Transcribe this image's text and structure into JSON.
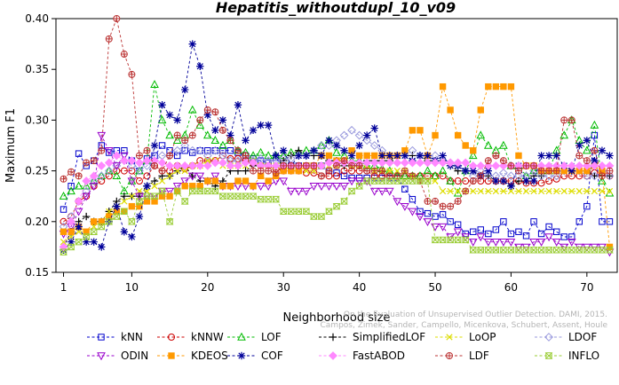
{
  "chart_data": {
    "type": "line",
    "title": "Hepatitis_withoutdupl_10_v09",
    "xlabel": "Neighborhood size",
    "ylabel": "Maximum F1",
    "xlim": [
      0,
      74
    ],
    "ylim": [
      0.15,
      0.4
    ],
    "x_ticks": [
      1,
      10,
      20,
      30,
      40,
      50,
      60,
      70
    ],
    "y_ticks": [
      "0.15",
      "0.20",
      "0.25",
      "0.30",
      "0.35",
      "0.40"
    ],
    "grid": false,
    "legend_position": "bottom",
    "credit": [
      "Campos, Zimek, Sander, Campello, Micenkova, Schubert, Assent, Houle",
      "On the Evaluation of Unsupervised Outlier Detection. DAMI, 2015."
    ],
    "x": [
      1,
      2,
      3,
      4,
      5,
      6,
      7,
      8,
      9,
      10,
      11,
      12,
      13,
      14,
      15,
      16,
      17,
      18,
      19,
      20,
      21,
      22,
      23,
      24,
      25,
      26,
      27,
      28,
      29,
      30,
      31,
      32,
      33,
      34,
      35,
      36,
      37,
      38,
      39,
      40,
      41,
      42,
      43,
      44,
      45,
      46,
      47,
      48,
      49,
      50,
      51,
      52,
      53,
      54,
      55,
      56,
      57,
      58,
      59,
      60,
      61,
      62,
      63,
      64,
      65,
      66,
      67,
      68,
      69,
      70,
      71,
      72,
      73
    ],
    "series": [
      {
        "name": "kNN",
        "color": "#0000cc",
        "marker": "square",
        "values": [
          0.212,
          0.235,
          0.267,
          0.255,
          0.26,
          0.275,
          0.268,
          0.27,
          0.27,
          0.26,
          0.25,
          0.262,
          0.265,
          0.275,
          0.27,
          0.265,
          0.27,
          0.268,
          0.27,
          0.27,
          0.27,
          0.27,
          0.27,
          0.268,
          0.265,
          0.262,
          0.26,
          0.258,
          0.263,
          0.255,
          0.255,
          0.255,
          0.255,
          0.255,
          0.255,
          0.25,
          0.248,
          0.245,
          0.243,
          0.243,
          0.243,
          0.243,
          0.243,
          0.243,
          0.243,
          0.232,
          0.222,
          0.21,
          0.208,
          0.205,
          0.207,
          0.2,
          0.197,
          0.188,
          0.19,
          0.192,
          0.188,
          0.192,
          0.2,
          0.188,
          0.19,
          0.186,
          0.2,
          0.188,
          0.195,
          0.19,
          0.185,
          0.185,
          0.2,
          0.215,
          0.285,
          0.2,
          0.2
        ]
      },
      {
        "name": "kNNW",
        "color": "#cc0000",
        "marker": "circle",
        "values": [
          0.2,
          0.205,
          0.22,
          0.225,
          0.235,
          0.24,
          0.245,
          0.25,
          0.25,
          0.25,
          0.24,
          0.245,
          0.255,
          0.25,
          0.25,
          0.255,
          0.252,
          0.255,
          0.26,
          0.26,
          0.26,
          0.265,
          0.262,
          0.262,
          0.26,
          0.258,
          0.255,
          0.255,
          0.252,
          0.25,
          0.25,
          0.25,
          0.248,
          0.248,
          0.245,
          0.245,
          0.245,
          0.25,
          0.25,
          0.25,
          0.25,
          0.245,
          0.245,
          0.245,
          0.245,
          0.245,
          0.245,
          0.245,
          0.245,
          0.245,
          0.245,
          0.24,
          0.24,
          0.24,
          0.24,
          0.24,
          0.24,
          0.24,
          0.24,
          0.24,
          0.24,
          0.238,
          0.238,
          0.238,
          0.24,
          0.242,
          0.245,
          0.245,
          0.245,
          0.245,
          0.248,
          0.248,
          0.245
        ]
      },
      {
        "name": "LOF",
        "color": "#00bb00",
        "marker": "triangle-up",
        "values": [
          0.225,
          0.23,
          0.235,
          0.235,
          0.24,
          0.245,
          0.25,
          0.245,
          0.23,
          0.24,
          0.25,
          0.26,
          0.335,
          0.3,
          0.285,
          0.28,
          0.285,
          0.31,
          0.295,
          0.285,
          0.28,
          0.275,
          0.28,
          0.27,
          0.268,
          0.265,
          0.268,
          0.265,
          0.265,
          0.265,
          0.268,
          0.268,
          0.27,
          0.27,
          0.275,
          0.28,
          0.268,
          0.265,
          0.26,
          0.26,
          0.255,
          0.255,
          0.252,
          0.25,
          0.245,
          0.245,
          0.245,
          0.245,
          0.25,
          0.245,
          0.25,
          0.24,
          0.228,
          0.25,
          0.265,
          0.285,
          0.275,
          0.27,
          0.275,
          0.255,
          0.255,
          0.245,
          0.25,
          0.25,
          0.25,
          0.27,
          0.285,
          0.3,
          0.28,
          0.27,
          0.295,
          0.24,
          0.228
        ]
      },
      {
        "name": "SimplifiedLOF",
        "color": "#000000",
        "marker": "plus",
        "values": [
          0.175,
          0.19,
          0.2,
          0.205,
          0.2,
          0.2,
          0.21,
          0.22,
          0.225,
          0.225,
          0.225,
          0.235,
          0.24,
          0.245,
          0.245,
          0.25,
          0.255,
          0.245,
          0.24,
          0.24,
          0.235,
          0.24,
          0.25,
          0.25,
          0.25,
          0.255,
          0.255,
          0.255,
          0.255,
          0.26,
          0.265,
          0.27,
          0.265,
          0.265,
          0.265,
          0.26,
          0.26,
          0.255,
          0.255,
          0.255,
          0.26,
          0.26,
          0.26,
          0.26,
          0.265,
          0.265,
          0.265,
          0.265,
          0.26,
          0.26,
          0.26,
          0.255,
          0.25,
          0.25,
          0.25,
          0.245,
          0.245,
          0.24,
          0.24,
          0.235,
          0.24,
          0.24,
          0.245,
          0.245,
          0.25,
          0.25,
          0.25,
          0.25,
          0.25,
          0.25,
          0.245,
          0.245,
          0.245
        ]
      },
      {
        "name": "LoOP",
        "color": "#dddd00",
        "marker": "x",
        "values": [
          0.18,
          0.185,
          0.19,
          0.19,
          0.195,
          0.2,
          0.21,
          0.215,
          0.22,
          0.225,
          0.23,
          0.23,
          0.235,
          0.24,
          0.245,
          0.25,
          0.25,
          0.255,
          0.255,
          0.26,
          0.26,
          0.255,
          0.255,
          0.255,
          0.255,
          0.26,
          0.255,
          0.255,
          0.255,
          0.255,
          0.25,
          0.25,
          0.25,
          0.25,
          0.255,
          0.255,
          0.255,
          0.26,
          0.255,
          0.255,
          0.255,
          0.25,
          0.25,
          0.25,
          0.25,
          0.25,
          0.245,
          0.24,
          0.24,
          0.24,
          0.23,
          0.23,
          0.23,
          0.23,
          0.23,
          0.23,
          0.23,
          0.23,
          0.23,
          0.23,
          0.23,
          0.23,
          0.23,
          0.23,
          0.23,
          0.23,
          0.23,
          0.23,
          0.23,
          0.23,
          0.23,
          0.23,
          0.23
        ]
      },
      {
        "name": "LDOF",
        "color": "#9999dd",
        "marker": "diamond",
        "values": [
          0.195,
          0.205,
          0.22,
          0.23,
          0.24,
          0.245,
          0.25,
          0.255,
          0.26,
          0.255,
          0.25,
          0.255,
          0.26,
          0.265,
          0.265,
          0.27,
          0.275,
          0.27,
          0.27,
          0.265,
          0.27,
          0.265,
          0.26,
          0.26,
          0.265,
          0.26,
          0.262,
          0.26,
          0.26,
          0.262,
          0.262,
          0.265,
          0.265,
          0.27,
          0.275,
          0.275,
          0.28,
          0.285,
          0.29,
          0.285,
          0.28,
          0.275,
          0.27,
          0.265,
          0.265,
          0.265,
          0.27,
          0.265,
          0.265,
          0.265,
          0.26,
          0.258,
          0.255,
          0.25,
          0.245,
          0.25,
          0.245,
          0.245,
          0.248,
          0.245,
          0.245,
          0.245,
          0.25,
          0.245,
          0.245,
          0.245,
          0.25,
          0.25,
          0.25,
          0.245,
          0.245,
          0.25,
          0.245
        ]
      },
      {
        "name": "ODIN",
        "color": "#9900cc",
        "marker": "triangle-down",
        "values": [
          0.188,
          0.195,
          0.21,
          0.225,
          0.235,
          0.285,
          0.27,
          0.255,
          0.265,
          0.24,
          0.225,
          0.225,
          0.225,
          0.23,
          0.23,
          0.235,
          0.24,
          0.245,
          0.245,
          0.24,
          0.245,
          0.235,
          0.235,
          0.235,
          0.235,
          0.235,
          0.235,
          0.235,
          0.24,
          0.24,
          0.23,
          0.23,
          0.23,
          0.235,
          0.235,
          0.235,
          0.235,
          0.235,
          0.24,
          0.24,
          0.24,
          0.23,
          0.23,
          0.23,
          0.22,
          0.215,
          0.21,
          0.205,
          0.2,
          0.195,
          0.195,
          0.185,
          0.19,
          0.185,
          0.18,
          0.185,
          0.18,
          0.18,
          0.18,
          0.18,
          0.175,
          0.175,
          0.18,
          0.18,
          0.185,
          0.18,
          0.175,
          0.18,
          0.175,
          0.175,
          0.175,
          0.175,
          0.17
        ]
      },
      {
        "name": "KDEOS",
        "color": "#ff9900",
        "marker": "square-filled",
        "values": [
          0.19,
          0.19,
          0.195,
          0.19,
          0.2,
          0.2,
          0.205,
          0.21,
          0.21,
          0.215,
          0.215,
          0.22,
          0.22,
          0.225,
          0.225,
          0.23,
          0.235,
          0.235,
          0.235,
          0.24,
          0.24,
          0.235,
          0.235,
          0.24,
          0.24,
          0.235,
          0.245,
          0.24,
          0.245,
          0.25,
          0.25,
          0.25,
          0.255,
          0.255,
          0.265,
          0.265,
          0.26,
          0.26,
          0.27,
          0.265,
          0.265,
          0.265,
          0.265,
          0.265,
          0.265,
          0.27,
          0.29,
          0.29,
          0.265,
          0.285,
          0.333,
          0.31,
          0.285,
          0.275,
          0.27,
          0.31,
          0.333,
          0.333,
          0.333,
          0.333,
          0.265,
          0.255,
          0.255,
          0.25,
          0.25,
          0.25,
          0.25,
          0.25,
          0.25,
          0.25,
          0.255,
          0.25,
          0.175
        ]
      },
      {
        "name": "COF",
        "color": "#000099",
        "marker": "star",
        "values": [
          0.172,
          0.18,
          0.195,
          0.18,
          0.18,
          0.175,
          0.2,
          0.215,
          0.19,
          0.185,
          0.205,
          0.235,
          0.275,
          0.315,
          0.305,
          0.3,
          0.33,
          0.375,
          0.353,
          0.305,
          0.29,
          0.3,
          0.285,
          0.315,
          0.28,
          0.29,
          0.295,
          0.295,
          0.265,
          0.27,
          0.255,
          0.265,
          0.265,
          0.27,
          0.265,
          0.28,
          0.275,
          0.27,
          0.265,
          0.275,
          0.285,
          0.292,
          0.265,
          0.265,
          0.265,
          0.265,
          0.26,
          0.265,
          0.265,
          0.26,
          0.265,
          0.255,
          0.255,
          0.25,
          0.25,
          0.245,
          0.25,
          0.24,
          0.24,
          0.235,
          0.255,
          0.24,
          0.24,
          0.265,
          0.265,
          0.265,
          0.255,
          0.25,
          0.275,
          0.28,
          0.26,
          0.27,
          0.265
        ]
      },
      {
        "name": "FastABOD",
        "color": "#ff88ff",
        "marker": "diamond-filled",
        "values": [
          0.175,
          0.2,
          0.22,
          0.24,
          0.245,
          0.255,
          0.258,
          0.265,
          0.26,
          0.26,
          0.258,
          0.26,
          0.26,
          0.258,
          0.255,
          0.255,
          0.255,
          0.255,
          0.255,
          0.255,
          0.258,
          0.258,
          0.255,
          0.255,
          0.258,
          0.258,
          0.255,
          0.255,
          0.255,
          0.255,
          0.255,
          0.255,
          0.255,
          0.255,
          0.255,
          0.258,
          0.258,
          0.258,
          0.258,
          0.258,
          0.258,
          0.258,
          0.258,
          0.258,
          0.258,
          0.258,
          0.258,
          0.258,
          0.258,
          0.258,
          0.258,
          0.258,
          0.258,
          0.258,
          0.255,
          0.255,
          0.255,
          0.255,
          0.255,
          0.255,
          0.255,
          0.255,
          0.255,
          0.255,
          0.255,
          0.255,
          0.255,
          0.255,
          0.255,
          0.255,
          0.255,
          0.255,
          0.255
        ]
      },
      {
        "name": "LDF",
        "color": "#bb3333",
        "marker": "circle-plus",
        "values": [
          0.242,
          0.249,
          0.245,
          0.258,
          0.26,
          0.27,
          0.38,
          0.4,
          0.365,
          0.345,
          0.265,
          0.27,
          0.255,
          0.25,
          0.265,
          0.285,
          0.28,
          0.285,
          0.3,
          0.31,
          0.308,
          0.29,
          0.28,
          0.27,
          0.265,
          0.25,
          0.25,
          0.25,
          0.248,
          0.255,
          0.255,
          0.255,
          0.255,
          0.255,
          0.245,
          0.25,
          0.255,
          0.26,
          0.255,
          0.255,
          0.25,
          0.25,
          0.25,
          0.245,
          0.245,
          0.25,
          0.245,
          0.24,
          0.22,
          0.22,
          0.215,
          0.215,
          0.22,
          0.23,
          0.24,
          0.245,
          0.26,
          0.265,
          0.26,
          0.255,
          0.25,
          0.255,
          0.255,
          0.25,
          0.25,
          0.25,
          0.3,
          0.3,
          0.265,
          0.26,
          0.27,
          0.245,
          0.25
        ]
      },
      {
        "name": "INFLO",
        "color": "#99cc33",
        "marker": "hourglass",
        "values": [
          0.17,
          0.175,
          0.18,
          0.185,
          0.19,
          0.195,
          0.2,
          0.205,
          0.21,
          0.2,
          0.22,
          0.225,
          0.225,
          0.23,
          0.2,
          0.23,
          0.22,
          0.23,
          0.23,
          0.23,
          0.23,
          0.225,
          0.225,
          0.225,
          0.225,
          0.225,
          0.222,
          0.222,
          0.222,
          0.21,
          0.21,
          0.21,
          0.21,
          0.205,
          0.205,
          0.21,
          0.215,
          0.22,
          0.23,
          0.235,
          0.24,
          0.24,
          0.24,
          0.24,
          0.24,
          0.24,
          0.24,
          0.24,
          0.24,
          0.182,
          0.182,
          0.182,
          0.182,
          0.182,
          0.172,
          0.172,
          0.172,
          0.172,
          0.172,
          0.172,
          0.172,
          0.172,
          0.172,
          0.172,
          0.172,
          0.172,
          0.172,
          0.172,
          0.172,
          0.172,
          0.172,
          0.172,
          0.172
        ]
      }
    ]
  }
}
